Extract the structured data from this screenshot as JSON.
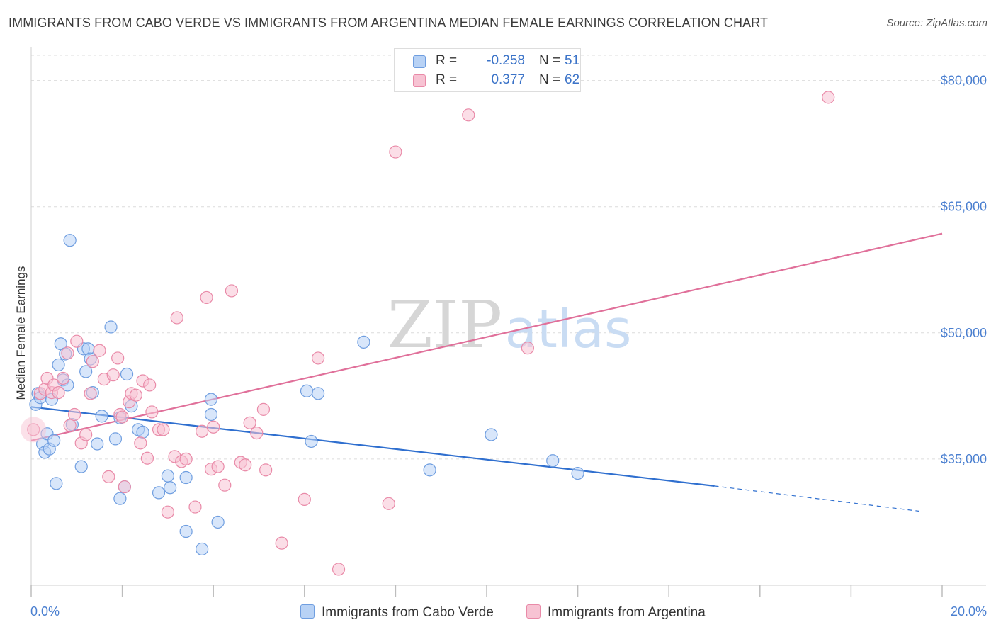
{
  "title": "IMMIGRANTS FROM CABO VERDE VS IMMIGRANTS FROM ARGENTINA MEDIAN FEMALE EARNINGS CORRELATION CHART",
  "source": "Source: ZipAtlas.com",
  "watermark": {
    "zip": "ZIP",
    "atlas": "atlas"
  },
  "legend_top": {
    "rows": [
      {
        "r_label": "R =",
        "r_value": "-0.258",
        "n_label": "N =",
        "n_value": "51"
      },
      {
        "r_label": "R =",
        "r_value": "0.377",
        "n_label": "N =",
        "n_value": "62"
      }
    ]
  },
  "legend_bottom": {
    "items": [
      {
        "label": "Immigrants from Cabo Verde"
      },
      {
        "label": "Immigrants from Argentina"
      }
    ]
  },
  "colors": {
    "blue_fill": "#b8d2f5",
    "blue_stroke": "#6f9ee0",
    "blue_line": "#2f6fcf",
    "pink_fill": "#f7c3d3",
    "pink_stroke": "#e98aa8",
    "pink_line": "#e0709a",
    "tick_text": "#4a7fd0",
    "grid": "#dcdcdc"
  },
  "chart_data": {
    "type": "scatter",
    "title": "IMMIGRANTS FROM CABO VERDE VS IMMIGRANTS FROM ARGENTINA MEDIAN FEMALE EARNINGS CORRELATION CHART",
    "xlabel": "",
    "ylabel": "Median Female Earnings",
    "xlim": [
      0,
      20
    ],
    "ylim": [
      20000,
      83000
    ],
    "x_tick_labels": [
      "0.0%",
      "20.0%"
    ],
    "y_ticks": [
      35000,
      50000,
      65000,
      80000
    ],
    "y_tick_labels": [
      "$35,000",
      "$50,000",
      "$65,000",
      "$80,000"
    ],
    "series": [
      {
        "name": "Immigrants from Cabo Verde",
        "color": "blue",
        "r": -0.258,
        "n": 51,
        "trend": {
          "x0": 0,
          "y0": 41200,
          "x1": 15.0,
          "y1": 31800,
          "dash_x1": 19.5,
          "dash_y1": 28800
        },
        "points": [
          [
            0.1,
            41500
          ],
          [
            0.15,
            42800
          ],
          [
            0.2,
            42300
          ],
          [
            0.25,
            36800
          ],
          [
            0.3,
            35800
          ],
          [
            0.35,
            38000
          ],
          [
            0.4,
            36200
          ],
          [
            0.45,
            42100
          ],
          [
            0.5,
            37200
          ],
          [
            0.55,
            32100
          ],
          [
            0.6,
            46200
          ],
          [
            0.65,
            48700
          ],
          [
            0.7,
            44400
          ],
          [
            0.75,
            47500
          ],
          [
            0.8,
            43800
          ],
          [
            0.85,
            61000
          ],
          [
            0.9,
            39100
          ],
          [
            1.1,
            34100
          ],
          [
            1.15,
            48100
          ],
          [
            1.2,
            45400
          ],
          [
            1.25,
            48100
          ],
          [
            1.3,
            46900
          ],
          [
            1.35,
            42900
          ],
          [
            1.45,
            36800
          ],
          [
            1.55,
            40100
          ],
          [
            1.75,
            50700
          ],
          [
            1.85,
            37400
          ],
          [
            1.95,
            39900
          ],
          [
            1.95,
            30300
          ],
          [
            2.05,
            31700
          ],
          [
            2.1,
            45100
          ],
          [
            2.2,
            41300
          ],
          [
            2.35,
            38500
          ],
          [
            2.45,
            38200
          ],
          [
            2.8,
            31000
          ],
          [
            3.0,
            33000
          ],
          [
            3.05,
            31600
          ],
          [
            3.4,
            26400
          ],
          [
            3.4,
            32800
          ],
          [
            3.75,
            24300
          ],
          [
            3.95,
            40300
          ],
          [
            3.95,
            42100
          ],
          [
            4.1,
            27500
          ],
          [
            6.05,
            43100
          ],
          [
            6.15,
            37100
          ],
          [
            6.3,
            42800
          ],
          [
            7.3,
            48900
          ],
          [
            8.75,
            33700
          ],
          [
            10.1,
            37900
          ],
          [
            11.45,
            34800
          ],
          [
            12.0,
            33300
          ]
        ]
      },
      {
        "name": "Immigrants from Argentina",
        "color": "pink",
        "r": 0.377,
        "n": 62,
        "trend": {
          "x0": 0,
          "y0": 37200,
          "x1": 20,
          "y1": 61800
        },
        "points": [
          [
            0.05,
            38500
          ],
          [
            0.2,
            42800
          ],
          [
            0.3,
            43300
          ],
          [
            0.35,
            44600
          ],
          [
            0.45,
            42900
          ],
          [
            0.5,
            43800
          ],
          [
            0.6,
            42900
          ],
          [
            0.7,
            44600
          ],
          [
            0.8,
            47600
          ],
          [
            0.85,
            39000
          ],
          [
            0.95,
            40300
          ],
          [
            1.0,
            49000
          ],
          [
            1.1,
            36900
          ],
          [
            1.2,
            37900
          ],
          [
            1.3,
            42800
          ],
          [
            1.35,
            46600
          ],
          [
            1.5,
            47900
          ],
          [
            1.6,
            44500
          ],
          [
            1.7,
            32900
          ],
          [
            1.8,
            45000
          ],
          [
            1.9,
            47000
          ],
          [
            1.95,
            40300
          ],
          [
            2.0,
            40000
          ],
          [
            2.05,
            31700
          ],
          [
            2.15,
            41800
          ],
          [
            2.2,
            42800
          ],
          [
            2.3,
            42600
          ],
          [
            2.4,
            36900
          ],
          [
            2.45,
            44300
          ],
          [
            2.55,
            35100
          ],
          [
            2.6,
            43800
          ],
          [
            2.65,
            40600
          ],
          [
            2.8,
            38500
          ],
          [
            2.9,
            38500
          ],
          [
            3.0,
            28700
          ],
          [
            3.15,
            35300
          ],
          [
            3.2,
            51800
          ],
          [
            3.3,
            34700
          ],
          [
            3.4,
            35000
          ],
          [
            3.6,
            29300
          ],
          [
            3.75,
            38300
          ],
          [
            3.85,
            54200
          ],
          [
            3.95,
            33800
          ],
          [
            4.0,
            38800
          ],
          [
            4.1,
            34100
          ],
          [
            4.25,
            31900
          ],
          [
            4.4,
            55000
          ],
          [
            4.6,
            34600
          ],
          [
            4.7,
            34300
          ],
          [
            4.8,
            39300
          ],
          [
            4.95,
            38100
          ],
          [
            5.1,
            40900
          ],
          [
            5.15,
            33700
          ],
          [
            5.5,
            25000
          ],
          [
            6.0,
            30200
          ],
          [
            6.3,
            47000
          ],
          [
            6.75,
            21900
          ],
          [
            7.85,
            29700
          ],
          [
            8.0,
            71500
          ],
          [
            9.6,
            75900
          ],
          [
            10.9,
            48200
          ],
          [
            17.5,
            78000
          ]
        ]
      }
    ]
  }
}
